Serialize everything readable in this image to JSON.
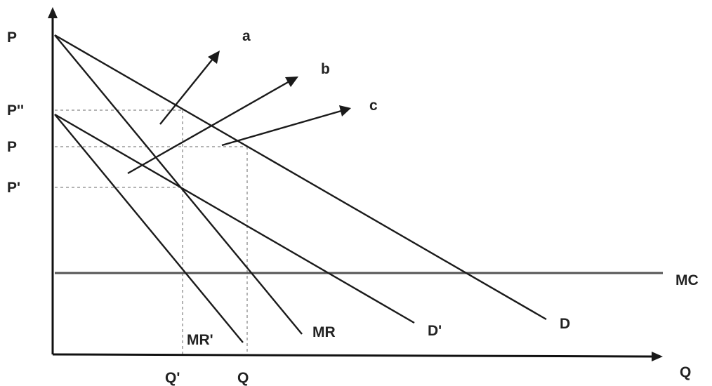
{
  "axes": {
    "y_label": "P",
    "x_label": "Q"
  },
  "price_levels": {
    "p_high": "P''",
    "p_mid": "P",
    "p_low": "P'"
  },
  "quantity_levels": {
    "q_prime": "Q'",
    "q": "Q"
  },
  "curves": {
    "demand": "D",
    "demand_shifted": "D'",
    "marginal_revenue": "MR",
    "marginal_revenue_shifted": "MR'",
    "marginal_cost": "MC"
  },
  "arrows": {
    "a": "a",
    "b": "b",
    "c": "c"
  }
}
